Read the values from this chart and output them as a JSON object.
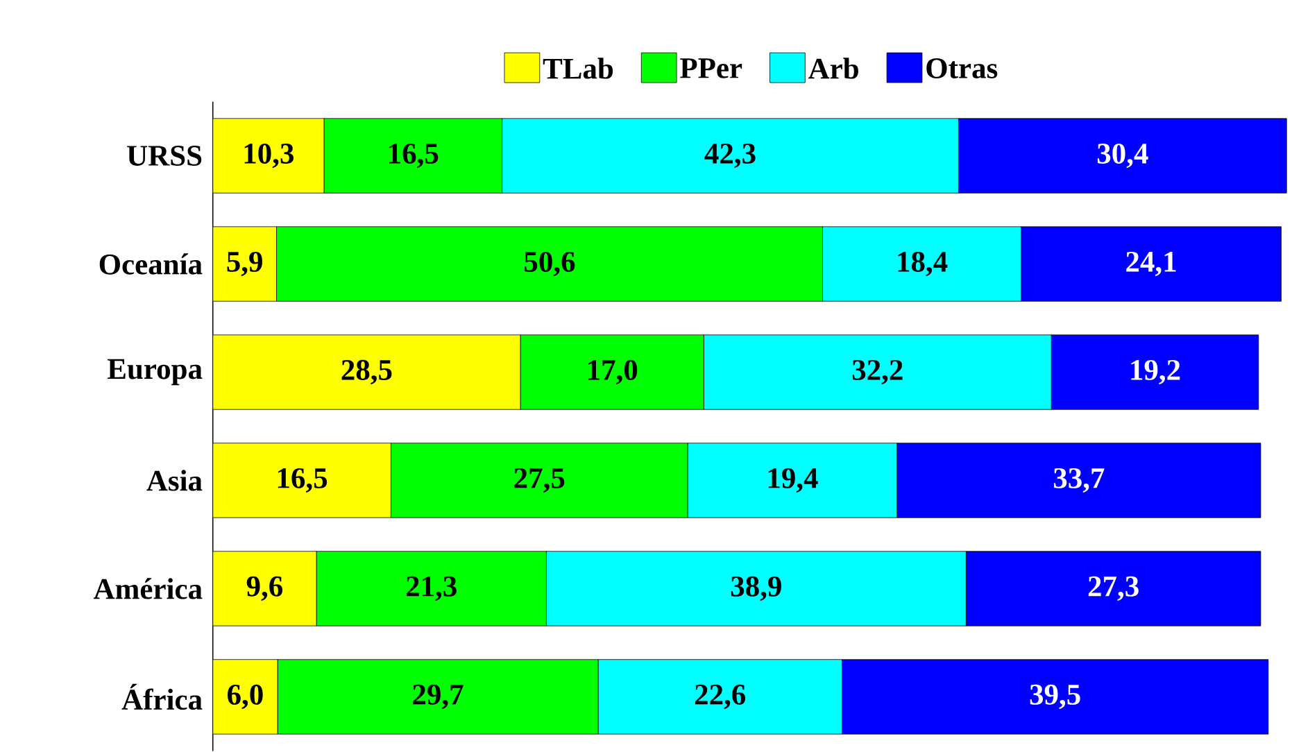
{
  "chart_data": {
    "type": "bar",
    "orientation": "horizontal",
    "stacked": true,
    "categories": [
      "URSS",
      "Oceanía",
      "Europa",
      "Asia",
      "América",
      "África"
    ],
    "series": [
      {
        "name": "TLab",
        "color": "#ffff00",
        "values": [
          10.3,
          5.9,
          28.5,
          16.5,
          9.6,
          6.0
        ],
        "value_labels": [
          "10,3",
          "5,9",
          "28,5",
          "16,5",
          "9,6",
          "6,0"
        ]
      },
      {
        "name": "PPer",
        "color": "#00ff00",
        "values": [
          16.5,
          50.6,
          17.0,
          27.5,
          21.3,
          29.7
        ],
        "value_labels": [
          "16,5",
          "50,6",
          "17,0",
          "27,5",
          "21,3",
          "29,7"
        ]
      },
      {
        "name": "Arb",
        "color": "#00ffff",
        "values": [
          42.3,
          18.4,
          32.2,
          19.4,
          38.9,
          22.6
        ],
        "value_labels": [
          "42,3",
          "18,4",
          "32,2",
          "19,4",
          "38,9",
          "22,6"
        ]
      },
      {
        "name": "Otras",
        "color": "#0000ff",
        "values": [
          30.4,
          24.1,
          19.2,
          33.7,
          27.3,
          39.5
        ],
        "value_labels": [
          "30,4",
          "24,1",
          "19,2",
          "33,7",
          "27,3",
          "39,5"
        ]
      }
    ],
    "xlim": [
      0,
      100
    ],
    "tick_labels": "y",
    "legend": "top"
  }
}
